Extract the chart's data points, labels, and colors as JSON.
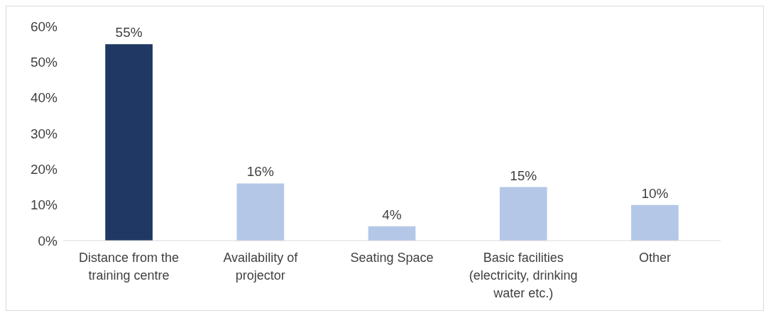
{
  "chart_data": {
    "type": "bar",
    "categories": [
      "Distance from the training centre",
      "Availability of projector",
      "Seating Space",
      "Basic facilities (electricity, drinking water etc.)",
      "Other"
    ],
    "values": [
      55,
      16,
      4,
      15,
      10
    ],
    "colors": [
      "#1f3864",
      "#b4c7e7",
      "#b4c7e7",
      "#b4c7e7",
      "#b4c7e7"
    ],
    "value_labels": [
      "55%",
      "16%",
      "4%",
      "15%",
      "10%"
    ],
    "ylim": [
      0,
      60
    ],
    "yticks": [
      {
        "value": 0,
        "label": "0%"
      },
      {
        "value": 10,
        "label": "10%"
      },
      {
        "value": 20,
        "label": "20%"
      },
      {
        "value": 30,
        "label": "30%"
      },
      {
        "value": 40,
        "label": "40%"
      },
      {
        "value": 50,
        "label": "50%"
      },
      {
        "value": 60,
        "label": "60%"
      }
    ],
    "grid": false,
    "legend": false
  }
}
